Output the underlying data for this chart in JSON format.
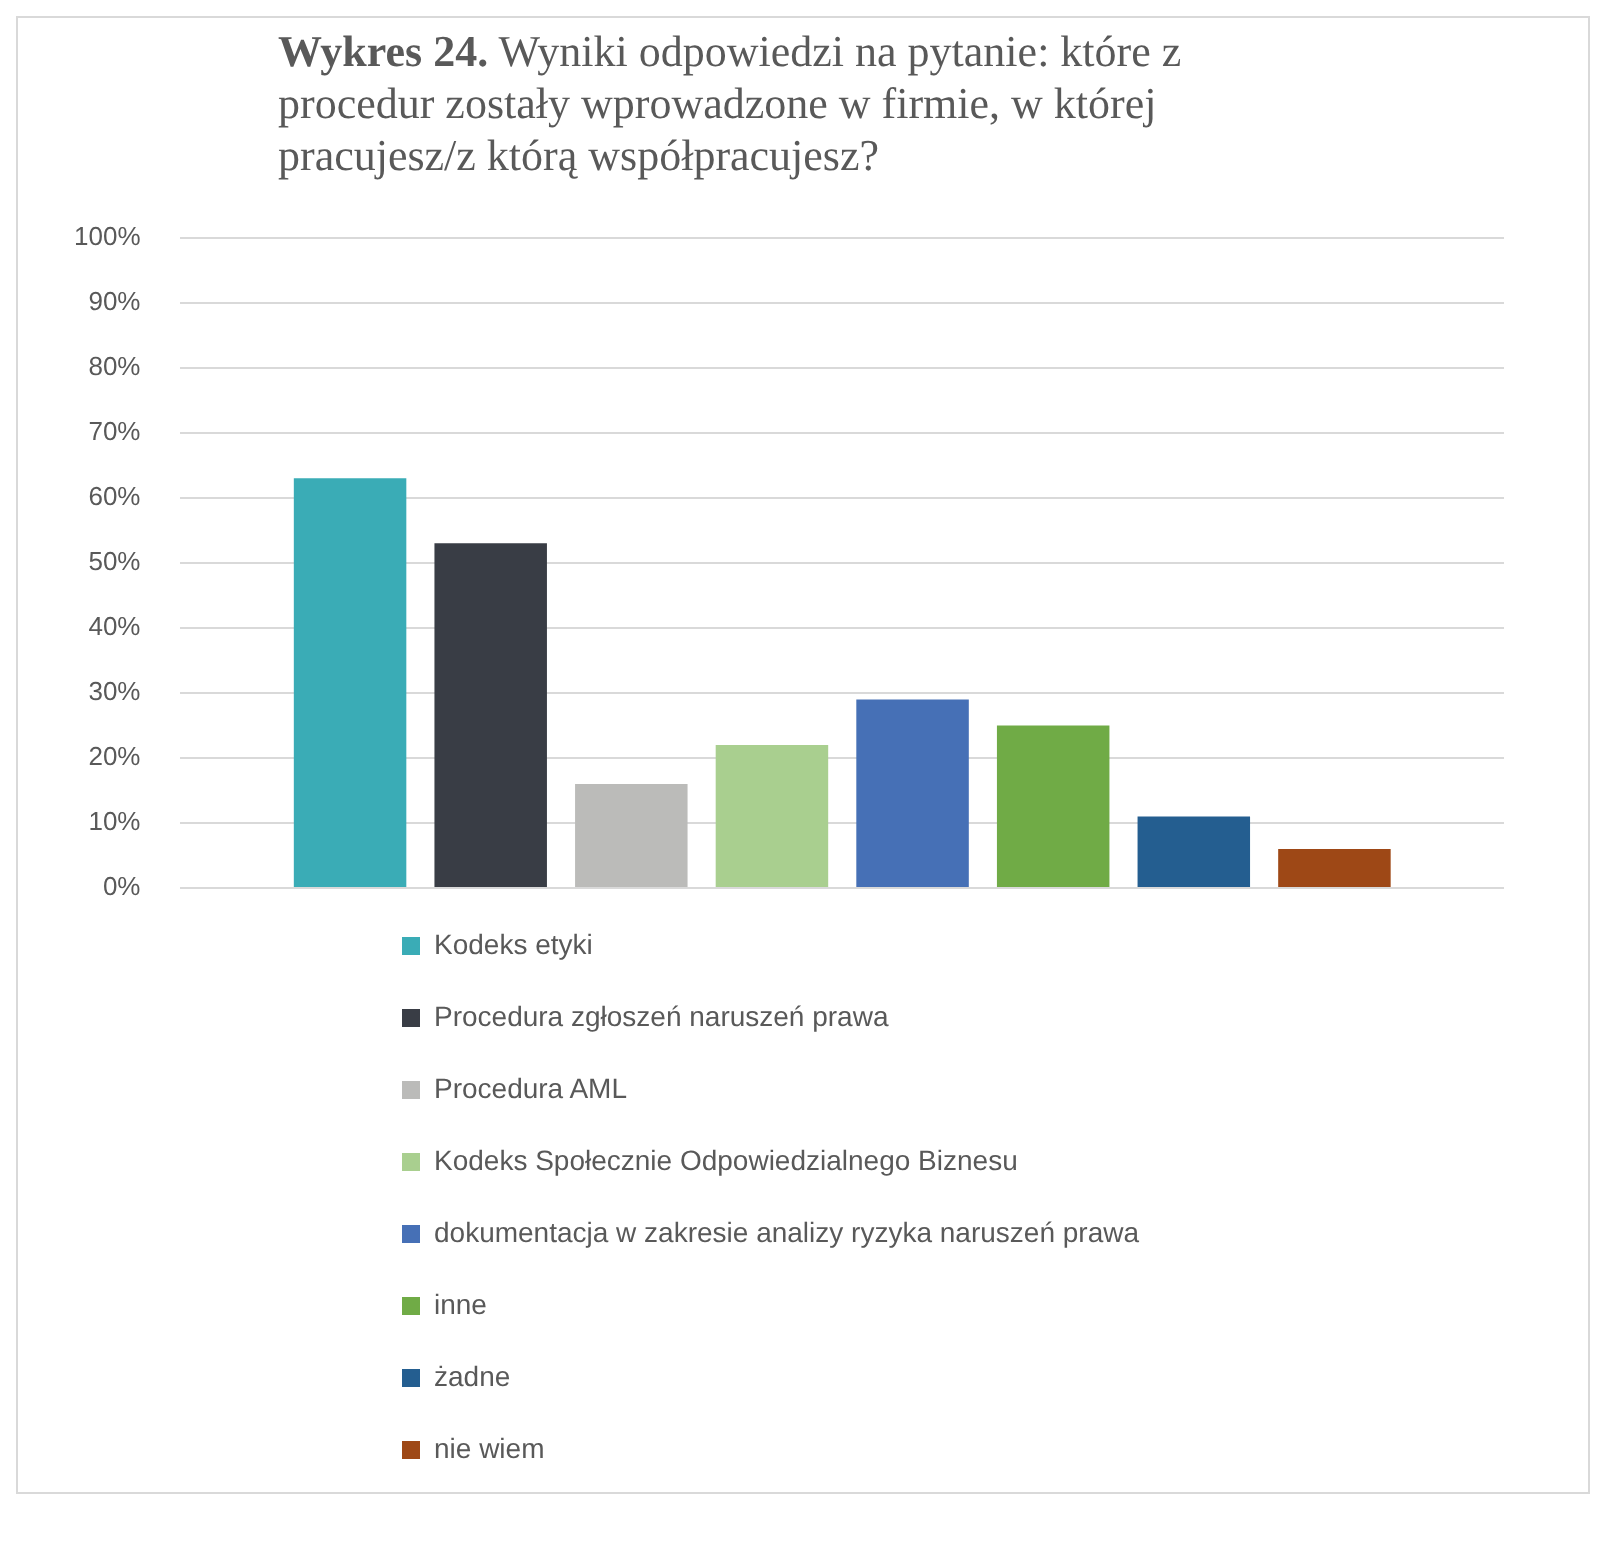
{
  "chart_data": {
    "type": "bar",
    "title": "Wykres 24. Wyniki odpowiedzi na pytanie: które z procedur zostały wprowadzone w firmie, w której pracujesz/z którą współpracujesz?",
    "categories": [
      null
    ],
    "series": [
      {
        "name": "Kodeks etyki",
        "color": "#3aacb6",
        "values": [
          63
        ]
      },
      {
        "name": "Procedura zgłoszeń naruszeń prawa",
        "color": "#393d45",
        "values": [
          53
        ]
      },
      {
        "name": "Procedura AML",
        "color": "#bbbbb9",
        "values": [
          16
        ]
      },
      {
        "name": "Kodeks Społecznie Odpowiedzialnego Biznesu",
        "color": "#a9cf8f",
        "values": [
          22
        ]
      },
      {
        "name": "dokumentacja w zakresie analizy ryzyka naruszeń prawa",
        "color": "#4670b6",
        "values": [
          29
        ]
      },
      {
        "name": "inne",
        "color": "#70ab46",
        "values": [
          25
        ]
      },
      {
        "name": "żadne",
        "color": "#245e90",
        "values": [
          11
        ]
      },
      {
        "name": "nie wiem",
        "color": "#9e4816",
        "values": [
          6
        ]
      }
    ],
    "ylim": [
      0,
      100
    ],
    "yticks": [
      {
        "value": 0,
        "label": "0%"
      },
      {
        "value": 10,
        "label": "10%"
      },
      {
        "value": 20,
        "label": "20%"
      },
      {
        "value": 30,
        "label": "30%"
      },
      {
        "value": 40,
        "label": "40%"
      },
      {
        "value": 50,
        "label": "50%"
      },
      {
        "value": 60,
        "label": "60%"
      },
      {
        "value": 70,
        "label": "70%"
      },
      {
        "value": 80,
        "label": "80%"
      },
      {
        "value": 90,
        "label": "90%"
      },
      {
        "value": 100,
        "label": "100%"
      }
    ],
    "grid": "y",
    "legend": "bottom",
    "tick_labels": "y"
  }
}
